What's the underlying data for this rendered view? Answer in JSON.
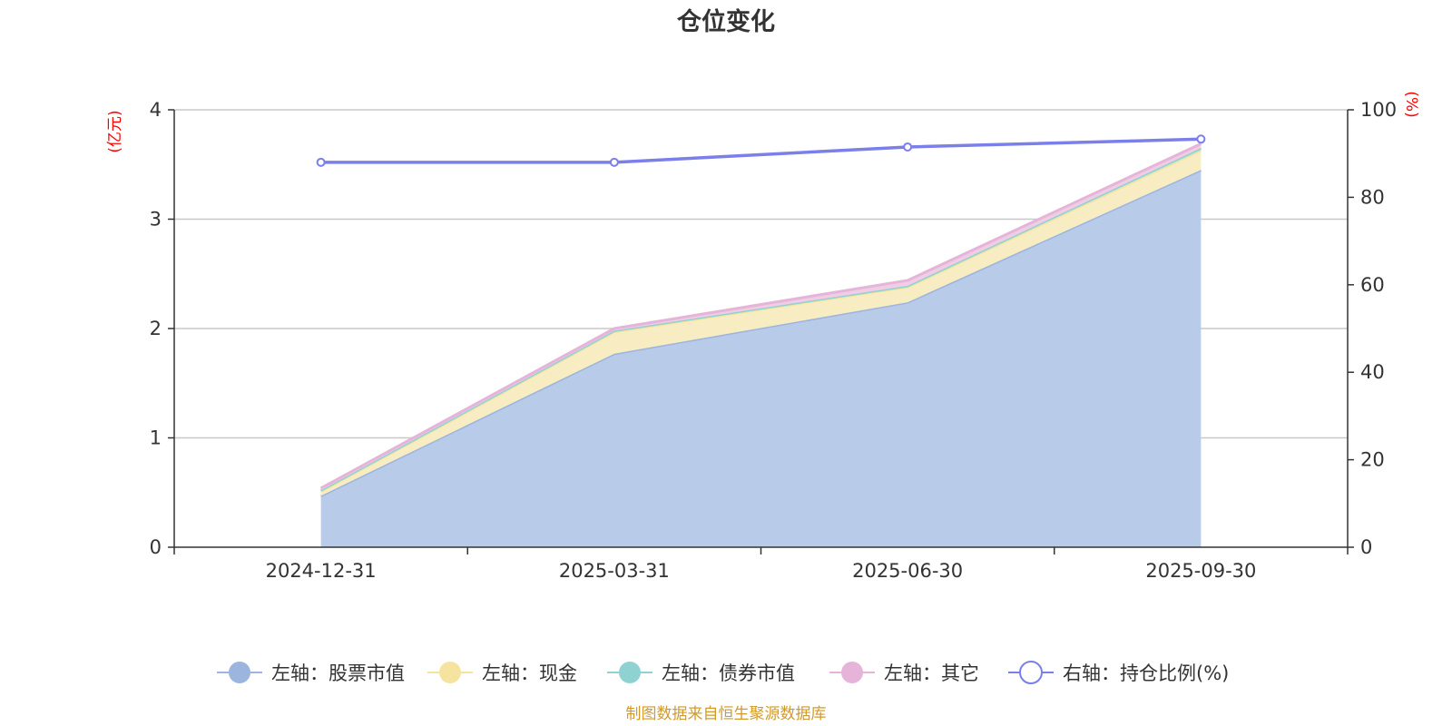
{
  "chart_data": {
    "type": "area",
    "title": "仓位变化",
    "categories": [
      "2024-12-31",
      "2025-03-31",
      "2025-06-30",
      "2025-09-30"
    ],
    "left_axis": {
      "unit": "(亿元)",
      "ylim": [
        0,
        4
      ],
      "ticks": [
        0,
        1,
        2,
        3,
        4
      ]
    },
    "right_axis": {
      "unit": "(%)",
      "ylim": [
        0,
        100
      ],
      "ticks": [
        0,
        20,
        40,
        60,
        80,
        100
      ]
    },
    "stacked": true,
    "series": [
      {
        "name": "左轴：股票市值",
        "axis": "left",
        "type": "area",
        "values": [
          0.47,
          1.77,
          2.24,
          3.45
        ],
        "color": "#9bb5df",
        "fill": "#b8cbe9"
      },
      {
        "name": "左轴：现金",
        "axis": "left",
        "type": "area",
        "values": [
          0.04,
          0.2,
          0.14,
          0.18
        ],
        "color": "#f5e39f",
        "fill": "#f8ecc2"
      },
      {
        "name": "左轴：债券市值",
        "axis": "left",
        "type": "area",
        "values": [
          0.01,
          0.01,
          0.01,
          0.02
        ],
        "color": "#8ed3d2",
        "fill": "#b6e2df"
      },
      {
        "name": "左轴：其它",
        "axis": "left",
        "type": "area",
        "values": [
          0.02,
          0.02,
          0.05,
          0.04
        ],
        "color": "#e6b4d8",
        "fill": "#eecde5"
      },
      {
        "name": "右轴：持仓比例(%)",
        "axis": "right",
        "type": "line",
        "values": [
          88.0,
          88.0,
          91.5,
          93.3
        ],
        "color": "#7b7fe9"
      }
    ],
    "grid": true,
    "legend_position": "bottom",
    "source": "制图数据来自恒生聚源数据库"
  }
}
